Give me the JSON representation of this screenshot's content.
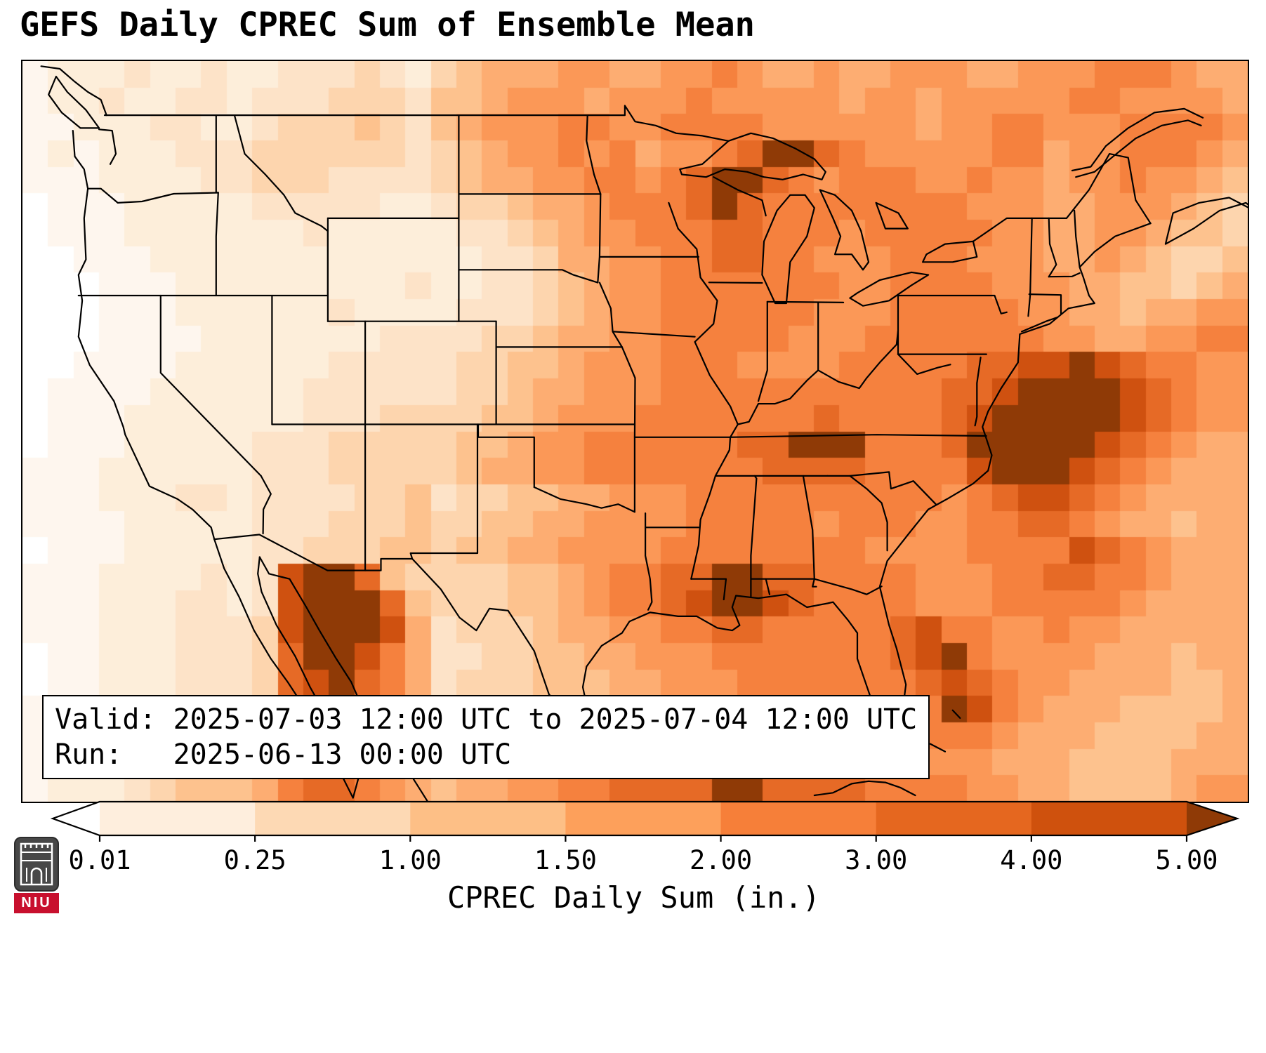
{
  "title": "GEFS Daily CPREC Sum of Ensemble Mean",
  "info_box": {
    "line1": "Valid: 2025-07-03 12:00 UTC to 2025-07-04 12:00 UTC",
    "line2": "Run:   2025-06-13 00:00 UTC"
  },
  "logo": {
    "text": "NIU"
  },
  "colorbar": {
    "label": "CPREC Daily Sum (in.)",
    "ticks": [
      "0.01",
      "0.25",
      "1.00",
      "1.50",
      "2.00",
      "3.00",
      "4.00",
      "5.00"
    ],
    "colors": [
      "#ffffff",
      "#feeedd",
      "#fdd9b4",
      "#fdbf86",
      "#fda05b",
      "#f67f39",
      "#e5671f",
      "#cf510d",
      "#8f3a06"
    ]
  },
  "chart_data": {
    "type": "heatmap",
    "title": "GEFS Daily CPREC Sum of Ensemble Mean",
    "colorbar_label": "CPREC Daily Sum (in.)",
    "colorbar_ticks_in": [
      0.01,
      0.25,
      1.0,
      1.5,
      2.0,
      3.0,
      4.0,
      5.0
    ],
    "units": "in.",
    "valid": "2025-07-03 12:00 UTC to 2025-07-04 12:00 UTC",
    "run": "2025-06-13 00:00 UTC",
    "value_scale": "each grid character 0-b indexes the palette from lowest to highest daily precipitation",
    "palette": [
      "#ffffff",
      "#fef6ee",
      "#fdeeda",
      "#fde3c8",
      "#fdd5ae",
      "#fdc28e",
      "#fdad72",
      "#fb9857",
      "#f5813e",
      "#e66a26",
      "#cf5110",
      "#8f3a06"
    ],
    "grid_rows": [
      "122232232233343245666776677876676677766777888766",
      "122322332333444355677767778777776776777778877776",
      "112223322344454356777887788887777776778877788887",
      "121222333444444345677878677 89bb987777788 67788876",
      "111222233444333345667788789bb98788877877 67787765",
      "011122222333332234456678889b988888888777 66777654",
      "011122222223222223345677888998887888887766776554",
      "001112222222222222334667788998877788877766765445",
      "000111222222222322334567788888887788887776655456",
      "000111222222322223334567788888877788888776656677",
      "000111122222223333445667788888777888888877667788",
      "001111222222333334455677788877778888899aaba98877",
      "011112222223333334456677788888888888 99abbbba9877",
      "011122222223334444556777888888898888 9abbbbba9877",
      "011122222333444445567788888899bbb8889bbbbba98766",
      "111222222333444445667788888889999 8888abbba987666",
      "111222332333344534455667778888888888789aa9876666",
      "111122222333444544556677778888878887788998766566",
      "011122222334445545566777788888888777788 88a987666",
      "1112222323abb95444455678899bb99888877788 99887666",
      "1112223323abbb9544455678 89abba98888777888 8876666",
      "1112223334abbba6344456677889988888 9a887787766666",
      "01122233349bba863344556677788888889ab87777666566",
      "01122233349ab98634445556677788888889a98776666556",
      "111222333489a875344455666777788888 88ba8766655556",
      "112223343478876544455667777888888888887666555566",
      "112233444578887645566778888899888887776665555666",
      "122234555689987656677889999bb99998888776 65555677"
    ]
  }
}
